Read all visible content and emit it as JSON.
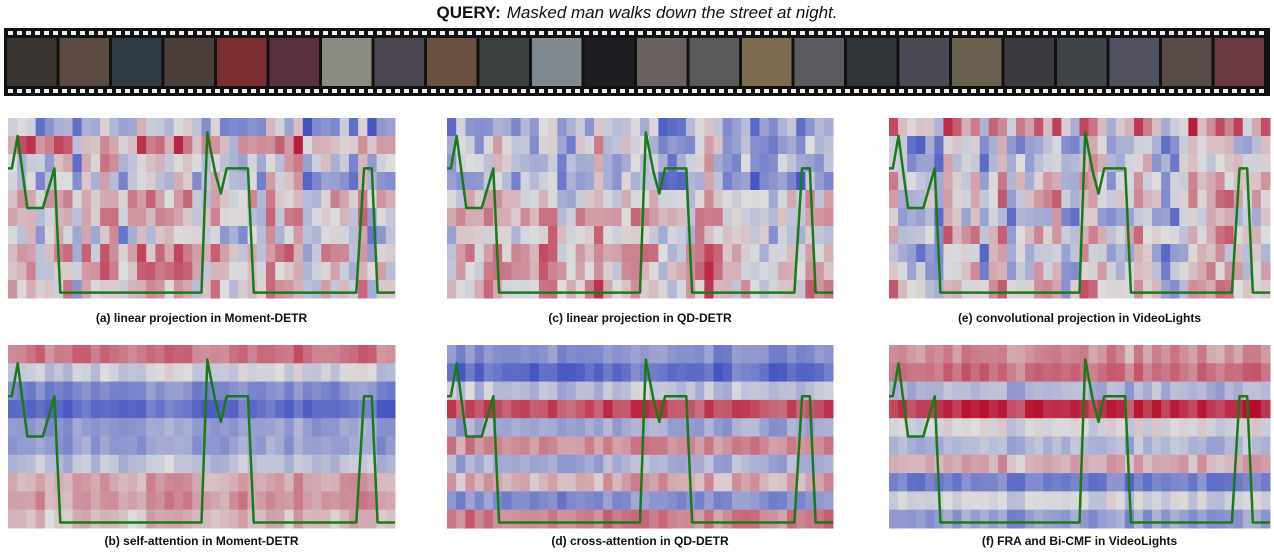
{
  "query": {
    "label": "QUERY:",
    "text": "Masked man walks down the street at night."
  },
  "panels": [
    {
      "caption": "(a) linear projection in Moment-DETR"
    },
    {
      "caption": "(c) linear projection in QD-DETR"
    },
    {
      "caption": "(e) convolutional projection in VideoLights"
    },
    {
      "caption": "(b) self-attention in Moment-DETR"
    },
    {
      "caption": "(d) cross-attention in QD-DETR"
    },
    {
      "caption": "(f) FRA and Bi-CMF in VideoLights"
    }
  ]
}
